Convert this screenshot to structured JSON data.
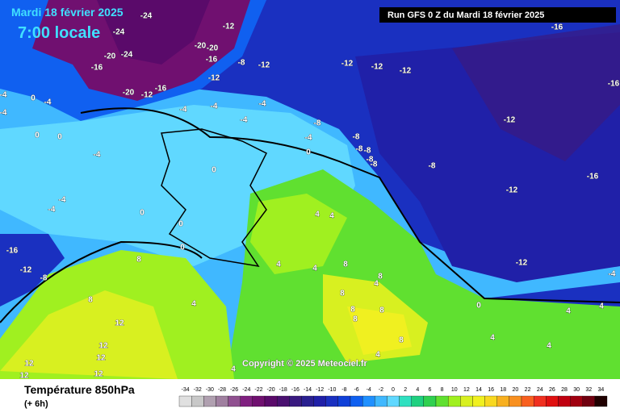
{
  "header": {
    "date": "Mardi 18 février 2025",
    "time": "7:00 locale",
    "run": "Run GFS 0 Z du Mardi 18 février 2025"
  },
  "copyright": "Copyright © 2025 Meteociel.fr",
  "footer": {
    "title": "Température 850hPa",
    "step": "(+ 6h)"
  },
  "scale": {
    "values": [
      -34,
      -32,
      -30,
      -28,
      -26,
      -24,
      -22,
      -20,
      -18,
      -16,
      -14,
      -12,
      -10,
      -8,
      -6,
      -4,
      -2,
      0,
      2,
      4,
      6,
      8,
      10,
      12,
      14,
      16,
      18,
      20,
      22,
      24,
      26,
      28,
      30,
      32,
      34
    ],
    "colors": [
      "#e0e0e0",
      "#c8c8c8",
      "#b0a0b0",
      "#a080a0",
      "#905090",
      "#802080",
      "#701070",
      "#5a0a6a",
      "#4a1070",
      "#3a1a80",
      "#2a2090",
      "#2020a8",
      "#1a30c0",
      "#1040d8",
      "#1060f0",
      "#2090ff",
      "#40b8ff",
      "#60d8ff",
      "#30e0c0",
      "#20d080",
      "#30d050",
      "#60e030",
      "#a0f020",
      "#d8f020",
      "#f0f020",
      "#f8d820",
      "#f8b020",
      "#f89020",
      "#f86020",
      "#f03020",
      "#e01010",
      "#c00010",
      "#a00010",
      "#700010",
      "#200000"
    ]
  },
  "contour_labels": [
    -24,
    -24,
    -12,
    -20,
    -20,
    -16,
    -8,
    -12,
    -12,
    -12,
    -12,
    -16,
    -16,
    -20,
    -24,
    -20,
    -12,
    -16,
    -12,
    -4,
    -4,
    -4,
    -4,
    -8,
    -8,
    -8,
    -8,
    -8,
    -8,
    -4,
    0,
    -8,
    -12,
    -12,
    -16,
    -16,
    -12,
    -4,
    0,
    0,
    -4,
    -4,
    -4,
    0,
    0,
    -4,
    -4,
    -4,
    0,
    0,
    0,
    0,
    -16,
    -12,
    -8,
    8,
    8,
    12,
    12,
    12,
    12,
    12,
    12,
    4,
    4,
    4,
    4,
    4,
    4,
    8,
    8,
    8,
    4,
    8,
    8,
    8,
    4,
    8,
    4,
    4,
    4,
    4
  ]
}
